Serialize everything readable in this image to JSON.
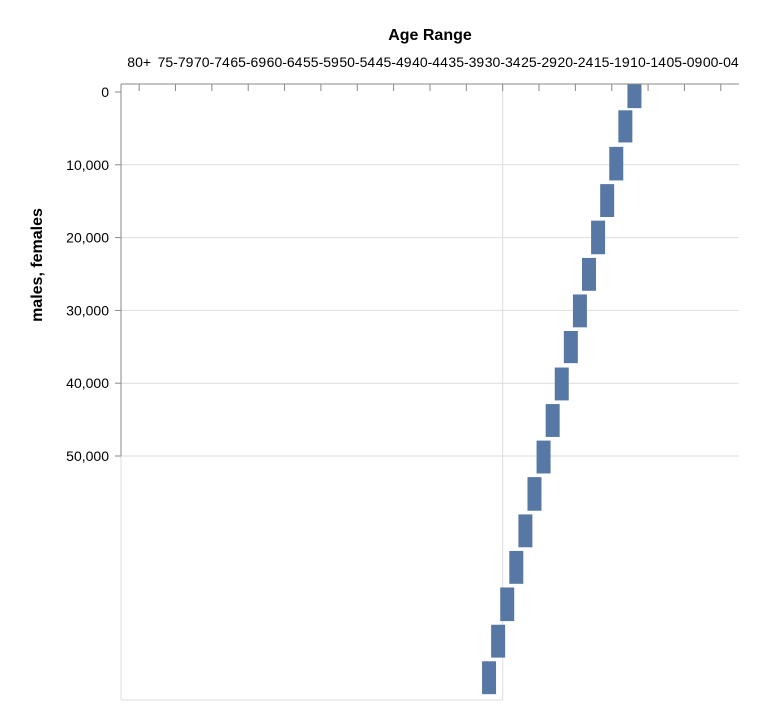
{
  "chart_data": {
    "type": "bar",
    "title": "",
    "xlabel": "Age Range",
    "ylabel": "males, females",
    "x_axis_position": "top",
    "x_ticks": [
      "80+",
      "75-79",
      "70-74",
      "65-69",
      "60-64",
      "55-59",
      "50-54",
      "45-49",
      "40-44",
      "35-39",
      "30-34",
      "25-29",
      "20-24",
      "15-19",
      "10-14",
      "05-09",
      "00-04"
    ],
    "y_ticks": [
      "0",
      "10,000",
      "20,000",
      "30,000",
      "40,000",
      "50,000"
    ],
    "y_tick_values": [
      0,
      10000,
      20000,
      30000,
      40000,
      50000
    ],
    "ylim": [
      0,
      50000
    ],
    "y_reversed": true,
    "grid": true,
    "bar_color": "#5778a4",
    "series": [
      {
        "name": "males, females",
        "bars": [
          {
            "x": 56.5,
            "y0": 0,
            "y1": 3300
          },
          {
            "x": 55.5,
            "y0": 3600,
            "y1": 8000
          },
          {
            "x": 54.5,
            "y0": 8600,
            "y1": 13200
          },
          {
            "x": 53.5,
            "y0": 13700,
            "y1": 18200
          },
          {
            "x": 52.5,
            "y0": 18700,
            "y1": 23300
          },
          {
            "x": 51.5,
            "y0": 23800,
            "y1": 28300
          },
          {
            "x": 50.5,
            "y0": 28800,
            "y1": 33300
          },
          {
            "x": 49.5,
            "y0": 33800,
            "y1": 38200
          },
          {
            "x": 48.5,
            "y0": 38800,
            "y1": 43300
          },
          {
            "x": 47.5,
            "y0": 43800,
            "y1": 48300
          },
          {
            "x": 46.5,
            "y0": 48800,
            "y1": 53300
          },
          {
            "x": 45.5,
            "y0": 53800,
            "y1": 58400
          },
          {
            "x": 44.5,
            "y0": 58900,
            "y1": 63400
          },
          {
            "x": 43.5,
            "y0": 63900,
            "y1": 68400
          },
          {
            "x": 42.5,
            "y0": 68900,
            "y1": 73500
          },
          {
            "x": 41.5,
            "y0": 74000,
            "y1": 78500
          },
          {
            "x": 40.5,
            "y0": 79000,
            "y1": 83500
          }
        ]
      }
    ]
  }
}
